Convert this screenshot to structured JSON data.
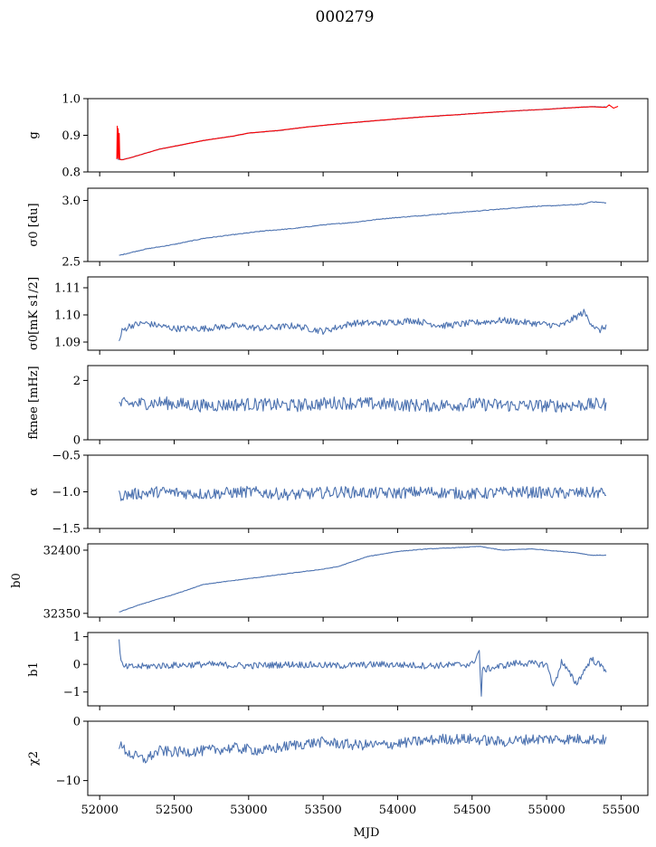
{
  "figure": {
    "title": "000279",
    "xlabel": "MJD"
  },
  "chart_data": [
    {
      "type": "line",
      "ylabel_html": "g",
      "ylim": [
        0.8,
        1.0
      ],
      "yticks": [
        0.8,
        0.9,
        1.0
      ],
      "ytick_labels": [
        "0.8",
        "0.9",
        "1.0"
      ],
      "series": [
        {
          "color": "#4c72b0",
          "x": [
            52120,
            52150,
            52200,
            52300,
            52400,
            52500,
            52700,
            52900,
            53000,
            53200,
            53400,
            53600,
            53800,
            54000,
            54200,
            54400,
            54600,
            54800,
            55000,
            55200,
            55300,
            55400
          ],
          "y": [
            0.835,
            0.833,
            0.838,
            0.85,
            0.862,
            0.87,
            0.886,
            0.898,
            0.906,
            0.913,
            0.923,
            0.931,
            0.938,
            0.945,
            0.951,
            0.956,
            0.962,
            0.967,
            0.971,
            0.976,
            0.978,
            0.977
          ]
        },
        {
          "color": "#ff0000",
          "x": [
            52115,
            52118,
            52120,
            52124,
            52128,
            52131,
            52135,
            52150,
            52200,
            52300,
            52400,
            52500,
            52700,
            52900,
            53000,
            53200,
            53400,
            53600,
            53800,
            54000,
            54200,
            54400,
            54600,
            54800,
            55000,
            55200,
            55300,
            55400,
            55420,
            55450,
            55480
          ],
          "y": [
            0.835,
            0.925,
            0.838,
            0.918,
            0.836,
            0.905,
            0.834,
            0.833,
            0.838,
            0.85,
            0.862,
            0.87,
            0.886,
            0.898,
            0.906,
            0.913,
            0.923,
            0.931,
            0.938,
            0.945,
            0.951,
            0.956,
            0.962,
            0.967,
            0.971,
            0.976,
            0.978,
            0.976,
            0.983,
            0.974,
            0.979
          ]
        }
      ]
    },
    {
      "type": "line",
      "ylabel_html": "σ0 [du]",
      "ylim": [
        2.5,
        3.1
      ],
      "yticks": [
        2.5,
        3.0
      ],
      "ytick_labels": [
        "2.5",
        "3.0"
      ],
      "series": [
        {
          "color": "#4c72b0",
          "x": [
            52130,
            52300,
            52500,
            52700,
            52900,
            53100,
            53300,
            53500,
            53700,
            53900,
            54100,
            54300,
            54500,
            54700,
            54900,
            55100,
            55250,
            55300,
            55400
          ],
          "y": [
            2.55,
            2.6,
            2.64,
            2.69,
            2.72,
            2.75,
            2.77,
            2.8,
            2.82,
            2.85,
            2.87,
            2.89,
            2.91,
            2.93,
            2.95,
            2.96,
            2.97,
            2.99,
            2.98
          ]
        }
      ]
    },
    {
      "type": "line",
      "ylabel_html": "σ0[mK s1/2]",
      "ylim": [
        1.087,
        1.114
      ],
      "yticks": [
        1.09,
        1.1,
        1.11
      ],
      "ytick_labels": [
        "1.09",
        "1.10",
        "1.11"
      ],
      "series": [
        {
          "color": "#4c72b0",
          "x": [
            52130,
            52150,
            52200,
            52300,
            52500,
            52700,
            52900,
            53100,
            53300,
            53500,
            53700,
            53900,
            54100,
            54300,
            54500,
            54700,
            54900,
            55100,
            55250,
            55300,
            55350,
            55400
          ],
          "y": [
            1.09,
            1.094,
            1.096,
            1.097,
            1.095,
            1.095,
            1.096,
            1.095,
            1.096,
            1.094,
            1.097,
            1.097,
            1.098,
            1.096,
            1.097,
            1.098,
            1.097,
            1.096,
            1.101,
            1.097,
            1.094,
            1.096
          ]
        }
      ]
    },
    {
      "type": "line",
      "ylabel_html": "fknee [mHz]",
      "ylim": [
        0,
        2.5
      ],
      "yticks": [
        0,
        2
      ],
      "ytick_labels": [
        "0",
        "2"
      ],
      "series": [
        {
          "color": "#4c72b0",
          "x": [
            52130,
            52400,
            52700,
            53000,
            53300,
            53600,
            53900,
            54200,
            54500,
            54800,
            55100,
            55400
          ],
          "y": [
            1.2,
            1.25,
            1.15,
            1.2,
            1.15,
            1.25,
            1.2,
            1.15,
            1.2,
            1.15,
            1.15,
            1.2
          ]
        }
      ]
    },
    {
      "type": "line",
      "ylabel_html": "α",
      "ylim": [
        -1.5,
        -0.5
      ],
      "yticks": [
        -1.5,
        -1.0,
        -0.5
      ],
      "ytick_labels": [
        "−1.5",
        "−1.0",
        "−0.5"
      ],
      "series": [
        {
          "color": "#4c72b0",
          "x": [
            52130,
            52400,
            52700,
            53000,
            53300,
            53600,
            53900,
            54200,
            54500,
            54800,
            55100,
            55400
          ],
          "y": [
            -1.05,
            -1.0,
            -1.03,
            -1.0,
            -1.04,
            -1.0,
            -1.02,
            -1.0,
            -1.03,
            -1.0,
            -1.02,
            -1.01
          ]
        }
      ]
    },
    {
      "type": "line",
      "ylabel_html": "b0",
      "ylim": [
        32347,
        32405
      ],
      "yticks": [
        32350,
        32400
      ],
      "ytick_labels": [
        "32350",
        "32400"
      ],
      "series": [
        {
          "color": "#4c72b0",
          "x": [
            52130,
            52200,
            52300,
            52500,
            52700,
            52900,
            53100,
            53300,
            53500,
            53600,
            53700,
            53800,
            53900,
            54000,
            54200,
            54400,
            54550,
            54700,
            54900,
            55100,
            55200,
            55300,
            55400
          ],
          "y": [
            32351,
            32354,
            32358,
            32365,
            32373,
            32376,
            32379,
            32382,
            32385,
            32387,
            32391,
            32395,
            32397,
            32399,
            32401,
            32402,
            32403,
            32400,
            32401,
            32399,
            32398,
            32396,
            32396
          ]
        }
      ]
    },
    {
      "type": "line",
      "ylabel_html": "b1",
      "ylim": [
        -1.5,
        1.15
      ],
      "yticks": [
        -1,
        0,
        1
      ],
      "ytick_labels": [
        "−1",
        "0",
        "1"
      ],
      "series": [
        {
          "color": "#4c72b0",
          "x": [
            52130,
            52140,
            52160,
            52400,
            52700,
            53000,
            53300,
            53600,
            53900,
            54200,
            54500,
            54550,
            54560,
            54570,
            54800,
            55000,
            55050,
            55100,
            55200,
            55300,
            55400
          ],
          "y": [
            1.0,
            0.1,
            -0.1,
            -0.05,
            0.0,
            -0.05,
            0.0,
            -0.05,
            0.0,
            -0.05,
            0.0,
            0.5,
            -1.3,
            -0.2,
            0.05,
            0.0,
            -0.8,
            0.1,
            -0.7,
            0.2,
            -0.2
          ]
        }
      ]
    },
    {
      "type": "line",
      "ylabel_html": "χ2",
      "ylim": [
        -12.5,
        0
      ],
      "yticks": [
        -10,
        0
      ],
      "ytick_labels": [
        "−10",
        "0"
      ],
      "series": [
        {
          "color": "#4c72b0",
          "x": [
            52130,
            52200,
            52300,
            52400,
            52500,
            52700,
            52900,
            53100,
            53300,
            53500,
            53700,
            53900,
            54100,
            54300,
            54500,
            54700,
            54900,
            55100,
            55300,
            55400
          ],
          "y": [
            -4,
            -5.5,
            -6.5,
            -5.0,
            -5.2,
            -5.0,
            -4.5,
            -5.0,
            -4.0,
            -3.5,
            -4.0,
            -4.0,
            -3.5,
            -3.0,
            -3.0,
            -3.5,
            -3.0,
            -3.0,
            -3.0,
            -3.2
          ]
        }
      ]
    }
  ],
  "xaxis": {
    "xlim": [
      51920,
      55680
    ],
    "xticks": [
      52000,
      52500,
      53000,
      53500,
      54000,
      54500,
      55000,
      55500
    ],
    "xtick_labels": [
      "52000",
      "52500",
      "53000",
      "53500",
      "54000",
      "54500",
      "55000",
      "55500"
    ]
  }
}
